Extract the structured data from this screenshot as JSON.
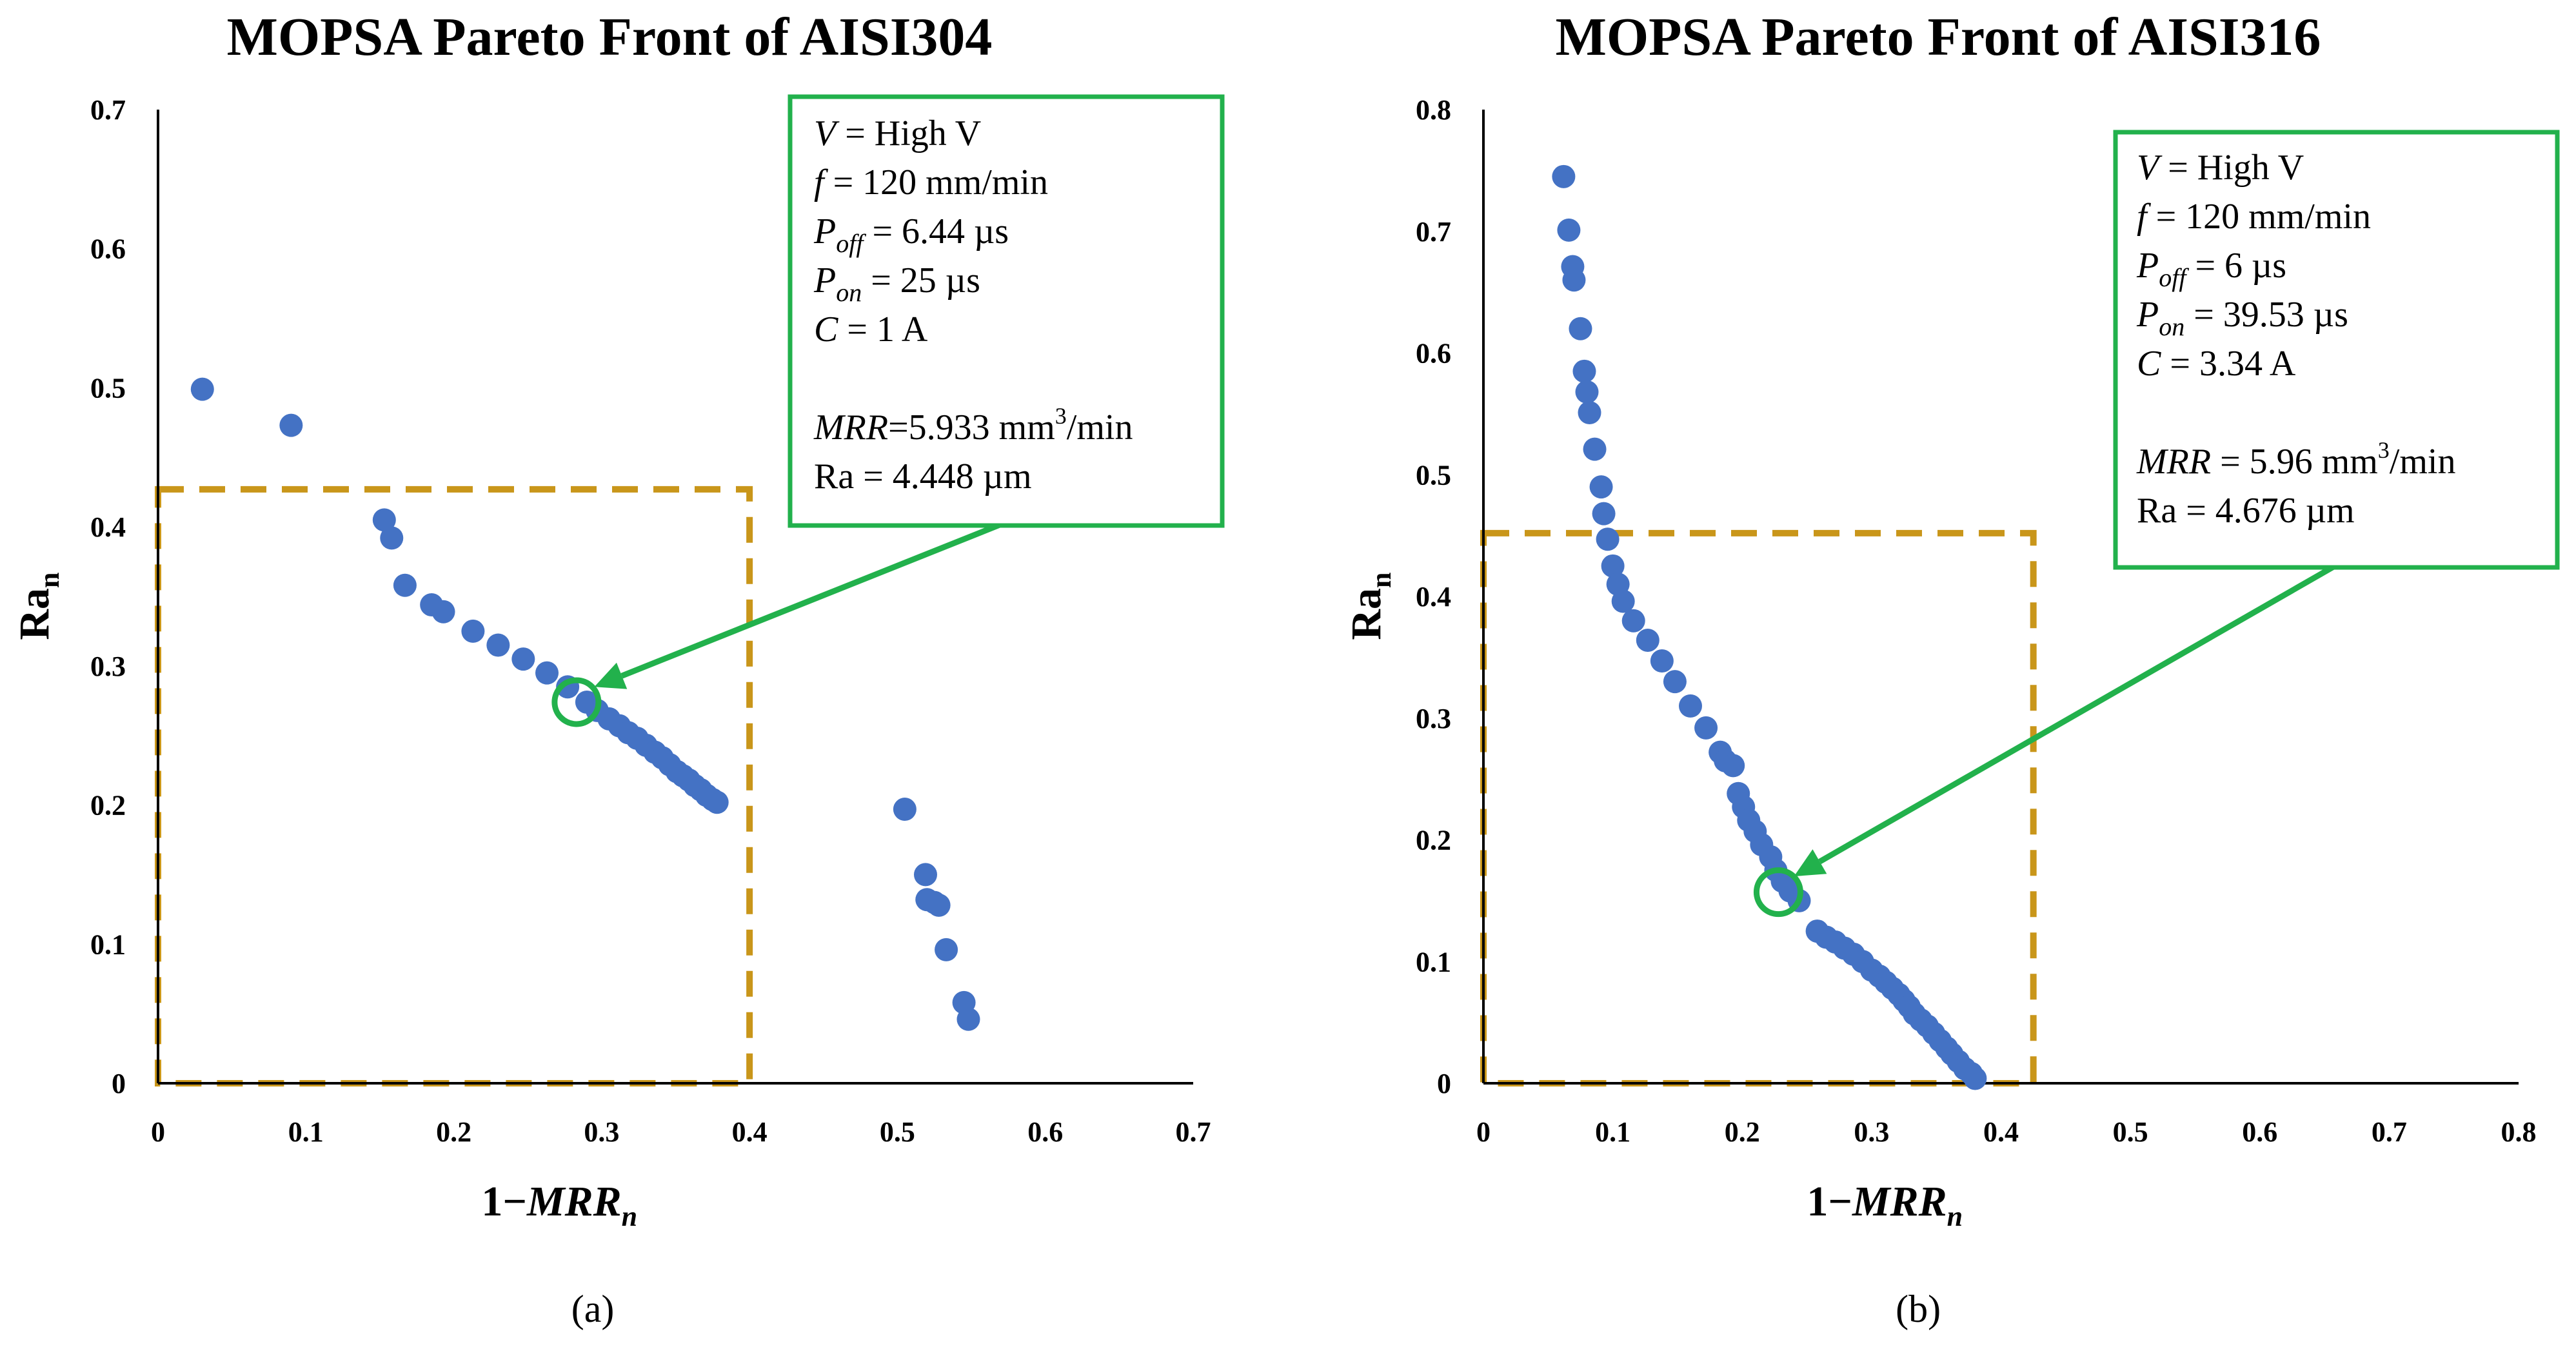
{
  "chart_data": [
    {
      "type": "scatter",
      "panel_label": "(a)",
      "title": "MOPSA Pareto Front of AISI304",
      "xlabel": "1−MRRn",
      "xlabel_parts": {
        "lead": "1−",
        "var": "MRR",
        "sub": "n"
      },
      "ylabel": "Ran",
      "ylabel_parts": {
        "base": "Ra",
        "sub": "n"
      },
      "xlim": [
        0,
        0.7
      ],
      "ylim": [
        0,
        0.7
      ],
      "xticks": [
        0,
        0.1,
        0.2,
        0.3,
        0.4,
        0.5,
        0.6,
        0.7
      ],
      "yticks": [
        0,
        0.1,
        0.2,
        0.3,
        0.4,
        0.5,
        0.6,
        0.7
      ],
      "xtick_labels": [
        "0",
        "0.1",
        "0.2",
        "0.3",
        "0.4",
        "0.5",
        "0.6",
        "0.7"
      ],
      "ytick_labels": [
        "0",
        "0.1",
        "0.2",
        "0.3",
        "0.4",
        "0.5",
        "0.6",
        "0.7"
      ],
      "grid": false,
      "point_color": "#4472C4",
      "highlight_color": "#22B14C",
      "region_color": "#C9961A",
      "points": [
        [
          0.03,
          0.499
        ],
        [
          0.09,
          0.473
        ],
        [
          0.153,
          0.405
        ],
        [
          0.158,
          0.392
        ],
        [
          0.167,
          0.358
        ],
        [
          0.185,
          0.344
        ],
        [
          0.193,
          0.339
        ],
        [
          0.213,
          0.325
        ],
        [
          0.23,
          0.315
        ],
        [
          0.247,
          0.305
        ],
        [
          0.263,
          0.295
        ],
        [
          0.277,
          0.285
        ],
        [
          0.29,
          0.274
        ],
        [
          0.297,
          0.268
        ],
        [
          0.305,
          0.262
        ],
        [
          0.312,
          0.257
        ],
        [
          0.318,
          0.252
        ],
        [
          0.324,
          0.248
        ],
        [
          0.33,
          0.243
        ],
        [
          0.336,
          0.238
        ],
        [
          0.341,
          0.234
        ],
        [
          0.346,
          0.229
        ],
        [
          0.351,
          0.224
        ],
        [
          0.355,
          0.221
        ],
        [
          0.359,
          0.218
        ],
        [
          0.363,
          0.214
        ],
        [
          0.367,
          0.211
        ],
        [
          0.371,
          0.207
        ],
        [
          0.375,
          0.204
        ],
        [
          0.378,
          0.202
        ],
        [
          0.505,
          0.197
        ],
        [
          0.519,
          0.15
        ],
        [
          0.52,
          0.132
        ],
        [
          0.525,
          0.13
        ],
        [
          0.528,
          0.128
        ],
        [
          0.533,
          0.096
        ],
        [
          0.545,
          0.058
        ],
        [
          0.548,
          0.046
        ]
      ],
      "highlight_point": [
        0.283,
        0.274
      ],
      "region": {
        "x": [
          0,
          0.4
        ],
        "y": [
          0,
          0.427
        ]
      },
      "arrow_target": [
        0.295,
        0.285
      ],
      "annotation_lines": [
        {
          "var": "V",
          "sub": "",
          "text": " = High V",
          "sup": "",
          "after": ""
        },
        {
          "var": "f",
          "sub": "",
          "text": " = 120 mm/min",
          "sup": "",
          "after": ""
        },
        {
          "var": "P",
          "sub": "off",
          "text": " = 6.44 µs",
          "sup": "",
          "after": ""
        },
        {
          "var": "P",
          "sub": "on",
          "text": " = 25 µs",
          "sup": "",
          "after": ""
        },
        {
          "var": "C",
          "sub": "",
          "text": " = 1 A",
          "sup": "",
          "after": ""
        },
        {
          "var": "",
          "sub": "",
          "text": "",
          "sup": "",
          "after": ""
        },
        {
          "var": "MRR",
          "sub": "",
          "text": "=5.933 mm",
          "sup": "3",
          "after": "/min"
        },
        {
          "var": "",
          "sub": "",
          "text": "Ra = 4.448 µm",
          "sup": "",
          "after": ""
        }
      ]
    },
    {
      "type": "scatter",
      "panel_label": "(b)",
      "title": "MOPSA Pareto Front of AISI316",
      "xlabel": "1−MRRn",
      "xlabel_parts": {
        "lead": "1−",
        "var": "MRR",
        "sub": "n"
      },
      "ylabel": "Ran",
      "ylabel_parts": {
        "base": "Ra",
        "sub": "n"
      },
      "xlim": [
        0,
        0.8
      ],
      "ylim": [
        0,
        0.8
      ],
      "xticks": [
        0,
        0.1,
        0.2,
        0.3,
        0.4,
        0.5,
        0.6,
        0.7,
        0.8
      ],
      "yticks": [
        0,
        0.1,
        0.2,
        0.3,
        0.4,
        0.5,
        0.6,
        0.7,
        0.8
      ],
      "xtick_labels": [
        "0",
        "0.1",
        "0.2",
        "0.3",
        "0.4",
        "0.5",
        "0.6",
        "0.7",
        "0.8"
      ],
      "ytick_labels": [
        "0",
        "0.1",
        "0.2",
        "0.3",
        "0.4",
        "0.5",
        "0.6",
        "0.7",
        "0.8"
      ],
      "grid": false,
      "point_color": "#4472C4",
      "highlight_color": "#22B14C",
      "region_color": "#C9961A",
      "points": [
        [
          0.062,
          0.745
        ],
        [
          0.066,
          0.701
        ],
        [
          0.069,
          0.671
        ],
        [
          0.07,
          0.66
        ],
        [
          0.075,
          0.62
        ],
        [
          0.078,
          0.585
        ],
        [
          0.08,
          0.568
        ],
        [
          0.082,
          0.551
        ],
        [
          0.086,
          0.521
        ],
        [
          0.091,
          0.49
        ],
        [
          0.093,
          0.468
        ],
        [
          0.096,
          0.447
        ],
        [
          0.1,
          0.425
        ],
        [
          0.104,
          0.41
        ],
        [
          0.108,
          0.396
        ],
        [
          0.116,
          0.38
        ],
        [
          0.127,
          0.364
        ],
        [
          0.138,
          0.347
        ],
        [
          0.148,
          0.33
        ],
        [
          0.16,
          0.31
        ],
        [
          0.172,
          0.292
        ],
        [
          0.183,
          0.272
        ],
        [
          0.187,
          0.265
        ],
        [
          0.193,
          0.261
        ],
        [
          0.197,
          0.238
        ],
        [
          0.201,
          0.227
        ],
        [
          0.205,
          0.216
        ],
        [
          0.21,
          0.207
        ],
        [
          0.215,
          0.196
        ],
        [
          0.222,
          0.186
        ],
        [
          0.226,
          0.175
        ],
        [
          0.231,
          0.166
        ],
        [
          0.237,
          0.158
        ],
        [
          0.244,
          0.15
        ],
        [
          0.258,
          0.125
        ],
        [
          0.265,
          0.12
        ],
        [
          0.272,
          0.116
        ],
        [
          0.279,
          0.111
        ],
        [
          0.286,
          0.106
        ],
        [
          0.293,
          0.1
        ],
        [
          0.3,
          0.093
        ],
        [
          0.306,
          0.088
        ],
        [
          0.311,
          0.083
        ],
        [
          0.316,
          0.078
        ],
        [
          0.321,
          0.073
        ],
        [
          0.325,
          0.068
        ],
        [
          0.329,
          0.063
        ],
        [
          0.333,
          0.057
        ],
        [
          0.338,
          0.052
        ],
        [
          0.343,
          0.047
        ],
        [
          0.348,
          0.041
        ],
        [
          0.353,
          0.035
        ],
        [
          0.358,
          0.029
        ],
        [
          0.362,
          0.024
        ],
        [
          0.367,
          0.018
        ],
        [
          0.372,
          0.012
        ],
        [
          0.377,
          0.008
        ],
        [
          0.38,
          0.004
        ]
      ],
      "highlight_point": [
        0.228,
        0.157
      ],
      "region": {
        "x": [
          0,
          0.425
        ],
        "y": [
          0,
          0.452
        ]
      },
      "arrow_target": [
        0.24,
        0.17
      ],
      "annotation_lines": [
        {
          "var": "V",
          "sub": "",
          "text": " = High V",
          "sup": "",
          "after": ""
        },
        {
          "var": "f",
          "sub": "",
          "text": " = 120 mm/min",
          "sup": "",
          "after": ""
        },
        {
          "var": "P",
          "sub": "off",
          "text": " = 6 µs",
          "sup": "",
          "after": ""
        },
        {
          "var": "P",
          "sub": "on",
          "text": " = 39.53 µs",
          "sup": "",
          "after": ""
        },
        {
          "var": "C",
          "sub": "",
          "text": " = 3.34 A",
          "sup": "",
          "after": ""
        },
        {
          "var": "",
          "sub": "",
          "text": "",
          "sup": "",
          "after": ""
        },
        {
          "var": "MRR",
          "sub": "",
          "text": " = 5.96 mm",
          "sup": "3",
          "after": "/min"
        },
        {
          "var": "",
          "sub": "",
          "text": "Ra = 4.676 µm",
          "sup": "",
          "after": ""
        }
      ]
    }
  ]
}
